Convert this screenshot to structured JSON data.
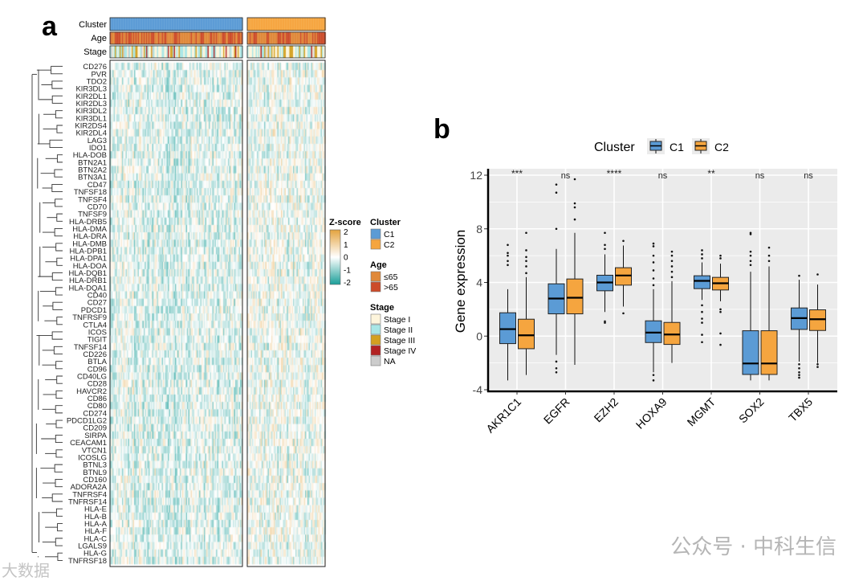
{
  "panel_a": {
    "label": "a",
    "annotation_rows": [
      "Cluster",
      "Age",
      "Stage"
    ],
    "genes": [
      "CD276",
      "PVR",
      "TDO2",
      "KIR3DL3",
      "KIR2DL1",
      "KIR2DL3",
      "KIR3DL2",
      "KIR3DL1",
      "KIR2DS4",
      "KIR2DL4",
      "LAG3",
      "IDO1",
      "HLA-DOB",
      "BTN2A1",
      "BTN2A2",
      "BTN3A1",
      "CD47",
      "TNFSF18",
      "TNFSF4",
      "CD70",
      "TNFSF9",
      "HLA-DRB5",
      "HLA-DMA",
      "HLA-DRA",
      "HLA-DMB",
      "HLA-DPB1",
      "HLA-DPA1",
      "HLA-DOA",
      "HLA-DQB1",
      "HLA-DRB1",
      "HLA-DQA1",
      "CD40",
      "CD27",
      "PDCD1",
      "TNFRSF9",
      "CTLA4",
      "ICOS",
      "TIGIT",
      "TNFSF14",
      "CD226",
      "BTLA",
      "CD96",
      "CD40LG",
      "CD28",
      "HAVCR2",
      "CD86",
      "CD80",
      "CD274",
      "PDCD1LG2",
      "CD209",
      "SIRPA",
      "CEACAM1",
      "VTCN1",
      "ICOSLG",
      "BTNL3",
      "BTNL9",
      "CD160",
      "ADORA2A",
      "TNFRSF4",
      "TNFRSF14",
      "HLA-E",
      "HLA-B",
      "HLA-A",
      "HLA-F",
      "HLA-C",
      "LGALS9",
      "HLA-G",
      "TNFRSF18"
    ],
    "legend": {
      "zscore": {
        "title": "Z-score",
        "ticks": [
          "2",
          "1",
          "0",
          "-1",
          "-2"
        ],
        "colors": [
          "#e3a33e",
          "#ffffff",
          "#1a9e98"
        ]
      },
      "cluster": {
        "title": "Cluster",
        "items": [
          {
            "label": "C1",
            "color": "#5b9bd5"
          },
          {
            "label": "C2",
            "color": "#f5a53f"
          }
        ]
      },
      "age": {
        "title": "Age",
        "items": [
          {
            "label": "≤65",
            "color": "#e0893a"
          },
          {
            "label": ">65",
            "color": "#cc4b2a"
          }
        ]
      },
      "stage": {
        "title": "Stage",
        "items": [
          {
            "label": "Stage I",
            "color": "#fdf5dc"
          },
          {
            "label": "Stage II",
            "color": "#a8e6e6"
          },
          {
            "label": "Stage III",
            "color": "#d4a020"
          },
          {
            "label": "Stage IV",
            "color": "#b22222"
          },
          {
            "label": "NA",
            "color": "#cccccc"
          }
        ]
      }
    }
  },
  "chart_data": {
    "type": "box",
    "panel_label": "b",
    "legend_title": "Cluster",
    "series": [
      {
        "name": "C1",
        "color": "#5b9bd5"
      },
      {
        "name": "C2",
        "color": "#f5a53f"
      }
    ],
    "categories": [
      "AKR1C1",
      "EGFR",
      "EZH2",
      "HOXA9",
      "MGMT",
      "SOX2",
      "TBX5"
    ],
    "significance": [
      "***",
      "ns",
      "****",
      "ns",
      "**",
      "ns",
      "ns"
    ],
    "ylabel": "Gene expression",
    "ylim": [
      -4,
      12.5
    ],
    "yticks": [
      -4,
      0,
      4,
      8,
      12
    ],
    "boxes": {
      "C1": [
        {
          "low": -3.3,
          "q1": -0.56,
          "median": 0.52,
          "q3": 1.74,
          "high": 3.5,
          "outliers": [
            5.3,
            5.6,
            6.0,
            6.2,
            6.8
          ]
        },
        {
          "low": -1.4,
          "q1": 1.66,
          "median": 2.8,
          "q3": 3.9,
          "high": 6.5,
          "outliers": [
            8.0,
            10.7,
            11.3,
            -1.9,
            -2.4,
            -2.7
          ]
        },
        {
          "low": 1.8,
          "q1": 3.38,
          "median": 4.0,
          "q3": 4.54,
          "high": 6.1,
          "outliers": [
            6.5,
            6.8,
            7.7,
            1.0,
            1.1
          ]
        },
        {
          "low": -2.7,
          "q1": -0.48,
          "median": 0.26,
          "q3": 1.14,
          "high": 3.5,
          "outliers": [
            3.8,
            4.3,
            4.9,
            5.5,
            6.0,
            6.7,
            6.9,
            -2.9,
            -3.3
          ]
        },
        {
          "low": 2.7,
          "q1": 3.54,
          "median": 4.12,
          "q3": 4.5,
          "high": 5.5,
          "outliers": [
            5.8,
            6.1,
            6.4,
            2.3,
            1.8,
            1.3,
            1.0,
            0.1,
            -0.45
          ]
        },
        {
          "low": -3.3,
          "q1": -2.86,
          "median": -2.04,
          "q3": 0.4,
          "high": 4.8,
          "outliers": [
            5.3,
            5.6,
            6.0,
            6.3,
            7.6,
            7.7
          ]
        },
        {
          "low": -1.9,
          "q1": 0.5,
          "median": 1.34,
          "q3": 2.1,
          "high": 4.2,
          "outliers": [
            4.5,
            -2.1,
            -2.4,
            -2.7,
            -2.9,
            -3.1
          ]
        }
      ],
      "C2": [
        {
          "low": -2.9,
          "q1": -0.94,
          "median": 0.06,
          "q3": 1.26,
          "high": 4.4,
          "outliers": [
            4.7,
            5.2,
            5.6,
            5.9,
            6.4,
            7.7
          ]
        },
        {
          "low": -2.14,
          "q1": 1.66,
          "median": 2.86,
          "q3": 4.26,
          "high": 7.7,
          "outliers": [
            8.7,
            9.6,
            9.9,
            11.7
          ]
        },
        {
          "low": 2.2,
          "q1": 3.8,
          "median": 4.52,
          "q3": 5.1,
          "high": 6.76,
          "outliers": [
            7.1,
            1.7
          ]
        },
        {
          "low": -2.0,
          "q1": -0.62,
          "median": 0.12,
          "q3": 1.02,
          "high": 4.1,
          "outliers": [
            4.4,
            4.8,
            5.2,
            5.6,
            6.0,
            6.3
          ]
        },
        {
          "low": 2.6,
          "q1": 3.44,
          "median": 3.94,
          "q3": 4.38,
          "high": 5.4,
          "outliers": [
            5.8,
            6.0,
            2.0,
            1.8,
            0.2,
            -0.65
          ]
        },
        {
          "low": -3.3,
          "q1": -2.86,
          "median": -2.04,
          "q3": 0.4,
          "high": 5.2,
          "outliers": [
            5.6,
            6.0,
            6.6
          ]
        },
        {
          "low": -2.0,
          "q1": 0.42,
          "median": 1.26,
          "q3": 1.96,
          "high": 3.84,
          "outliers": [
            4.6,
            -2.1,
            -2.3
          ]
        }
      ]
    }
  },
  "watermark": {
    "right": "公众号 · 中科生信",
    "left": "大数据"
  }
}
